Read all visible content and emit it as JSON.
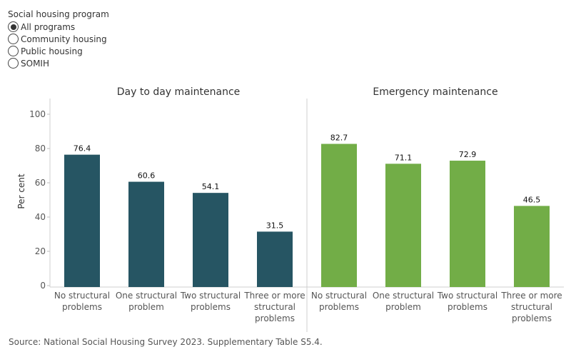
{
  "filter": {
    "title": "Social housing program",
    "options": [
      {
        "label": "All programs",
        "selected": true
      },
      {
        "label": "Community housing",
        "selected": false
      },
      {
        "label": "Public housing",
        "selected": false
      },
      {
        "label": "SOMIH",
        "selected": false
      }
    ]
  },
  "chart_data": {
    "type": "bar",
    "ylabel": "Per cent",
    "ylim": [
      0,
      100
    ],
    "yticks": [
      0,
      20,
      40,
      60,
      80,
      100
    ],
    "panels": [
      {
        "title": "Day to day maintenance",
        "color": "#265563",
        "categories": [
          "No structural problems",
          "One structural problem",
          "Two structural problems",
          "Three or more structural problems"
        ],
        "values": [
          76.4,
          60.6,
          54.1,
          31.5
        ],
        "labels": [
          "76.4",
          "60.6",
          "54.1",
          "31.5"
        ]
      },
      {
        "title": "Emergency maintenance",
        "color": "#72ad47",
        "categories": [
          "No structural problems",
          "One structural problem",
          "Two structural problems",
          "Three or more structural problems"
        ],
        "values": [
          82.7,
          71.1,
          72.9,
          46.5
        ],
        "labels": [
          "82.7",
          "71.1",
          "72.9",
          "46.5"
        ]
      }
    ]
  },
  "source": "Source: National Social Housing Survey 2023. Supplementary Table S5.4."
}
